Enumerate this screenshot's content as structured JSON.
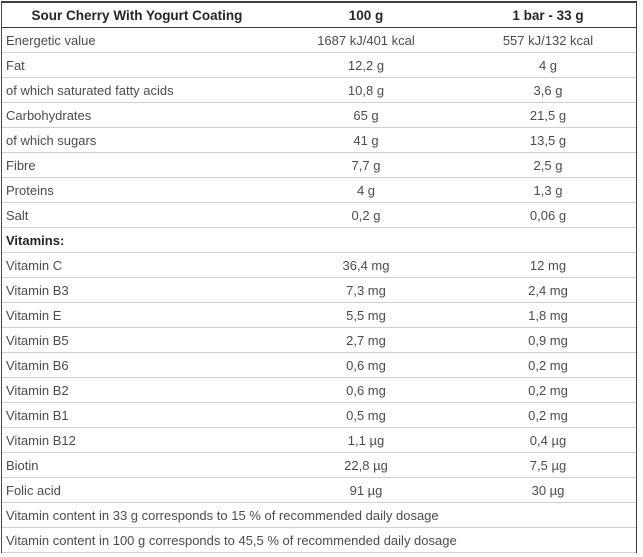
{
  "table": {
    "header": {
      "product": "Sour Cherry With Yogurt Coating",
      "col_100g": "100 g",
      "col_bar": "1 bar - 33 g"
    },
    "rows": [
      {
        "label": "Energetic value",
        "per_100g": "1687 kJ/401 kcal",
        "per_bar": "557 kJ/132 kcal"
      },
      {
        "label": "Fat",
        "per_100g": "12,2 g",
        "per_bar": "4 g"
      },
      {
        "label": "of which saturated fatty acids",
        "per_100g": "10,8 g",
        "per_bar": "3,6 g"
      },
      {
        "label": "Carbohydrates",
        "per_100g": "65 g",
        "per_bar": "21,5 g"
      },
      {
        "label": "of which sugars",
        "per_100g": "41 g",
        "per_bar": "13,5 g"
      },
      {
        "label": "Fibre",
        "per_100g": "7,7 g",
        "per_bar": "2,5 g"
      },
      {
        "label": "Proteins",
        "per_100g": "4 g",
        "per_bar": "1,3 g"
      },
      {
        "label": "Salt",
        "per_100g": "0,2 g",
        "per_bar": "0,06 g"
      }
    ],
    "section_header": "Vitamins:",
    "vitamin_rows": [
      {
        "label": "Vitamin C",
        "per_100g": "36,4 mg",
        "per_bar": "12 mg"
      },
      {
        "label": "Vitamin B3",
        "per_100g": "7,3 mg",
        "per_bar": "2,4 mg"
      },
      {
        "label": "Vitamin E",
        "per_100g": "5,5 mg",
        "per_bar": "1,8 mg"
      },
      {
        "label": "Vitamin B5",
        "per_100g": "2,7 mg",
        "per_bar": "0,9 mg"
      },
      {
        "label": "Vitamin B6",
        "per_100g": "0,6 mg",
        "per_bar": "0,2 mg"
      },
      {
        "label": "Vitamin B2",
        "per_100g": "0,6 mg",
        "per_bar": "0,2 mg"
      },
      {
        "label": "Vitamin B1",
        "per_100g": "0,5 mg",
        "per_bar": "0,2 mg"
      },
      {
        "label": "Vitamin B12",
        "per_100g": "1,1 µg",
        "per_bar": "0,4 µg"
      },
      {
        "label": "Biotin",
        "per_100g": "22,8 µg",
        "per_bar": "7,5 µg"
      },
      {
        "label": "Folic acid",
        "per_100g": "91 µg",
        "per_bar": "30 µg"
      }
    ],
    "footnotes": [
      "Vitamin content in 33 g corresponds to 15 % of recommended daily dosage",
      "Vitamin content in 100 g corresponds to 45,5 % of recommended daily dosage"
    ]
  }
}
